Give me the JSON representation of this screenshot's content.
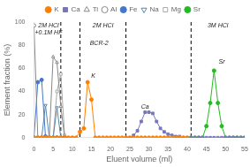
{
  "chart_data": {
    "type": "line",
    "x_label": "Eluent volume (ml)",
    "y_label": "Element fraction (%)",
    "xlim": [
      0,
      55
    ],
    "ylim": [
      0,
      100
    ],
    "xticks": [
      0,
      5,
      10,
      15,
      20,
      25,
      30,
      35,
      40,
      45,
      50,
      55
    ],
    "yticks": [
      0,
      20,
      40,
      60,
      80,
      100
    ],
    "grid": false,
    "legend": "top",
    "vlines": [
      7,
      12,
      24,
      41
    ],
    "annotations": [
      {
        "text": "2M HCl\n+0.1M HF",
        "x": 3.5,
        "y": 99.5
      },
      {
        "text": "2M HCl",
        "x": 18,
        "y": 99.5
      },
      {
        "text": "3M HCl",
        "x": 48,
        "y": 99.5
      },
      {
        "text": "K",
        "x": 15.5,
        "y": 50
      },
      {
        "text": "Ca",
        "x": 29,
        "y": 23
      },
      {
        "text": "Sr",
        "x": 49,
        "y": 62
      },
      {
        "text": "BCR-2",
        "x": 17,
        "y": 78
      }
    ],
    "series": [
      {
        "name": "K",
        "color": "#FF8000",
        "marker": "circle",
        "x": [
          0,
          1,
          2,
          3,
          4,
          5,
          6,
          7,
          8,
          9,
          10,
          11,
          12,
          13,
          14,
          15,
          16,
          17,
          18,
          19,
          20,
          21,
          22,
          23,
          24,
          25,
          26,
          27,
          28,
          29,
          30,
          31,
          32,
          33,
          34,
          35,
          36,
          37,
          38,
          39,
          40
        ],
        "values": [
          0,
          0,
          0,
          0,
          0,
          0,
          0,
          0,
          0,
          0,
          0,
          0,
          5,
          8,
          48,
          33,
          0,
          0,
          0,
          0,
          0,
          0,
          0,
          0,
          0,
          0,
          0,
          0,
          0,
          0,
          0,
          0,
          0,
          0,
          0,
          0,
          0,
          0,
          0,
          0,
          0
        ]
      },
      {
        "name": "Ca",
        "color": "#7777bb",
        "marker": "square",
        "x": [
          24,
          25,
          26,
          27,
          28,
          29,
          30,
          31,
          32,
          33,
          34,
          35,
          36,
          37,
          38,
          39,
          40,
          41,
          42,
          43,
          44,
          45,
          46,
          47,
          48,
          49,
          50,
          51,
          52,
          53,
          54,
          55
        ],
        "values": [
          0,
          0,
          2,
          6,
          14,
          22,
          22,
          21,
          14,
          8,
          5,
          3,
          2,
          1,
          1,
          0,
          0,
          0,
          0,
          0,
          0,
          0,
          0,
          0,
          0,
          0,
          0,
          0,
          0,
          0,
          0,
          0
        ]
      },
      {
        "name": "Ti",
        "color": "#888888",
        "marker": "triangle-open",
        "x": [
          0,
          1,
          2,
          3,
          4,
          5,
          6,
          7,
          8
        ],
        "values": [
          0,
          0,
          0,
          0,
          0,
          70,
          65,
          27,
          0
        ]
      },
      {
        "name": "Al",
        "color": "#888888",
        "marker": "circle-open",
        "x": [
          0,
          1,
          2,
          3,
          4,
          5,
          6,
          7
        ],
        "values": [
          97,
          0,
          0,
          0,
          0,
          0,
          0,
          0
        ]
      },
      {
        "name": "Fe",
        "color": "#4477cc",
        "marker": "circle",
        "x": [
          0,
          1,
          2,
          3,
          4,
          5,
          6,
          7,
          8
        ],
        "values": [
          0,
          48,
          50,
          1,
          0,
          0,
          0,
          0,
          0
        ]
      },
      {
        "name": "Na",
        "color": "#5588aa",
        "marker": "triangle-down-open",
        "x": [
          0,
          1,
          2,
          3,
          4,
          5,
          6,
          7,
          8
        ],
        "values": [
          0,
          0,
          0,
          28,
          0,
          0,
          26,
          0,
          0
        ]
      },
      {
        "name": "Mg",
        "color": "#aaaaaa",
        "marker": "square-open",
        "x": [
          0,
          1,
          2,
          3,
          4,
          5,
          6,
          7,
          8,
          9,
          10
        ],
        "values": [
          0,
          0,
          0,
          0,
          0,
          0,
          40,
          55,
          2,
          0,
          0
        ]
      },
      {
        "name": "Sr",
        "color": "#22bb22",
        "marker": "circle",
        "x": [
          41,
          42,
          43,
          44,
          45,
          46,
          47,
          48,
          49,
          50,
          51,
          52,
          53,
          54,
          55
        ],
        "values": [
          0,
          0,
          0,
          0,
          10,
          30,
          58,
          30,
          10,
          0,
          0,
          0,
          0,
          0,
          0
        ]
      }
    ]
  }
}
